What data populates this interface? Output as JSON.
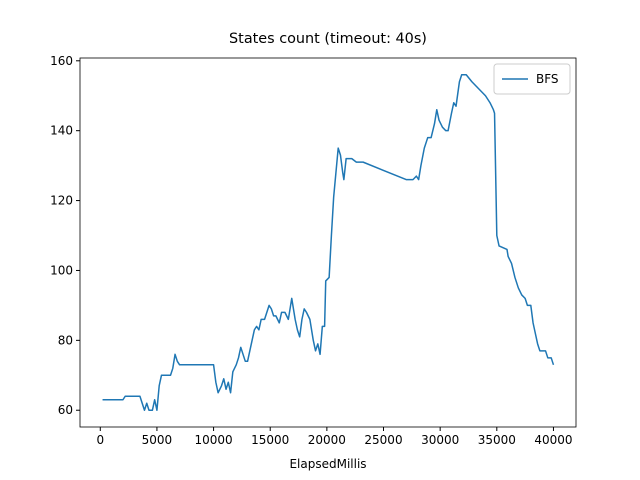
{
  "chart_data": {
    "type": "line",
    "title": "States count (timeout: 40s)",
    "x_label": "ElapsedMillis",
    "x": [
      200,
      2000,
      2200,
      3500,
      3700,
      3900,
      4100,
      4300,
      4600,
      4800,
      5000,
      5200,
      5400,
      6200,
      6400,
      6600,
      6800,
      7000,
      10000,
      10200,
      10400,
      10700,
      10900,
      11100,
      11300,
      11500,
      11700,
      12000,
      12200,
      12400,
      12600,
      12800,
      13000,
      13200,
      13400,
      13600,
      13800,
      14000,
      14200,
      14500,
      14700,
      14900,
      15100,
      15300,
      15500,
      15800,
      16000,
      16300,
      16600,
      16900,
      17200,
      17400,
      17600,
      17800,
      18000,
      18200,
      18500,
      18800,
      19000,
      19200,
      19400,
      19600,
      19800,
      19900,
      20200,
      20400,
      20600,
      20800,
      21000,
      21200,
      21400,
      21500,
      21700,
      22200,
      22600,
      23200,
      27000,
      27600,
      27900,
      28100,
      28300,
      28600,
      28900,
      29200,
      29500,
      29700,
      29900,
      30200,
      30500,
      30700,
      31000,
      31200,
      31400,
      31700,
      31900,
      32300,
      32800,
      33400,
      34000,
      34400,
      34700,
      34800,
      35000,
      35200,
      35900,
      36000,
      36300,
      36600,
      36900,
      37200,
      37500,
      37700,
      38000,
      38200,
      38400,
      38600,
      38800,
      39300,
      39500,
      39800,
      40000
    ],
    "series": [
      {
        "name": "BFS",
        "color": "#1f77b4",
        "values": [
          63,
          63,
          64,
          64,
          62,
          60,
          62,
          60,
          60,
          63,
          60,
          67,
          70,
          70,
          72,
          76,
          74,
          73,
          73,
          68,
          65,
          67,
          69,
          66,
          68,
          65,
          71,
          73,
          75,
          78,
          76,
          74,
          74,
          77,
          80,
          83,
          84,
          83,
          86,
          86,
          88,
          90,
          89,
          87,
          87,
          85,
          88,
          88,
          86,
          92,
          86,
          83,
          81,
          86,
          89,
          88,
          86,
          80,
          77,
          79,
          76,
          84,
          84,
          97,
          98,
          110,
          121,
          128,
          135,
          133,
          128,
          126,
          132,
          132,
          131,
          131,
          126,
          126,
          127,
          126,
          130,
          135,
          138,
          138,
          142,
          146,
          143,
          141,
          140,
          140,
          145,
          148,
          147,
          154,
          156,
          156,
          154,
          152,
          150,
          148,
          146,
          145,
          110,
          107,
          106,
          104,
          102,
          98,
          95,
          93,
          92,
          90,
          90,
          85,
          82,
          79,
          77,
          77,
          75,
          75,
          73
        ]
      }
    ],
    "xlim": [
      -1790,
      41990
    ],
    "ylim": [
      55.2,
      160.8
    ],
    "xticks": [
      0,
      5000,
      10000,
      15000,
      20000,
      25000,
      30000,
      35000,
      40000
    ],
    "yticks": [
      60,
      80,
      100,
      120,
      140,
      160
    ],
    "legend": "upper right"
  }
}
